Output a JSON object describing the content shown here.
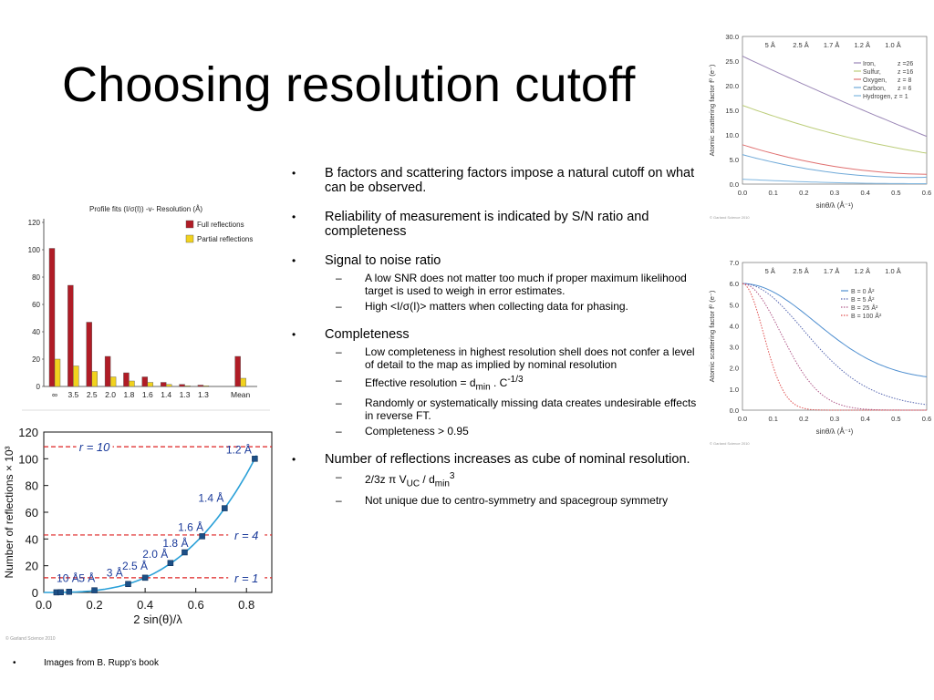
{
  "slide": {
    "title": "Choosing resolution cutoff",
    "footnote": "Images from B. Rupp’s book",
    "bullets": [
      {
        "text": "B factors and scattering factors impose a natural cutoff on what can be observed."
      },
      {
        "text": "Reliability of measurement is indicated by S/N ratio and completeness"
      },
      {
        "text": "Signal to noise ratio",
        "subs": [
          "A low SNR does not matter too much if proper maximum likelihood target is used to weigh in error estimates.",
          "High <I/σ(I)> matters when collecting data for phasing."
        ]
      },
      {
        "text": "Completeness",
        "subs": [
          "Low completeness in highest resolution shell does not confer a level of detail to the map as implied by nominal resolution",
          "Effective resolution = d",
          "Randomly or systematically missing data creates undesirable effects in reverse FT.",
          "Completeness > 0.95"
        ],
        "effective_min": "min",
        "effective_tail": " . C",
        "effective_exp": "-1/3"
      },
      {
        "text": "Number of reflections increases as cube of nominal resolution.",
        "subs": [
          "2/3z π V",
          "Not unique due to centro-symmetry and spacegroup symmetry"
        ],
        "formula_uc": "UC",
        "formula_mid": " / d",
        "formula_min": "min",
        "formula_exp": "3"
      }
    ]
  },
  "chart_data": [
    {
      "type": "bar",
      "title": "Profile fits (I/σ(I)) -v- Resolution (Å)",
      "categories": [
        "∞",
        "3.5",
        "2.5",
        "2.0",
        "1.8",
        "1.6",
        "1.4",
        "1.3",
        "1.3",
        "",
        "Mean"
      ],
      "series": [
        {
          "name": "Full reflections",
          "color": "#b01c26",
          "values": [
            101,
            74,
            47,
            22,
            10,
            7,
            3,
            1.5,
            1,
            null,
            22
          ]
        },
        {
          "name": "Partial reflections",
          "color": "#f1d21e",
          "values": [
            20,
            15,
            11,
            7,
            4,
            3,
            1.5,
            0.5,
            0.5,
            null,
            6
          ]
        }
      ],
      "y_ticks": [
        "0",
        "20",
        "40",
        "60",
        "80",
        "100",
        "120"
      ],
      "ylim": [
        0,
        120
      ]
    },
    {
      "type": "line",
      "xlabel": "2 sin(θ)/λ",
      "ylabel": "Number of reflections × 10³",
      "xlim": [
        0,
        0.9
      ],
      "ylim": [
        0,
        120
      ],
      "x_ticks": [
        "0.0",
        "0.2",
        "0.4",
        "0.6",
        "0.8"
      ],
      "y_ticks": [
        "0",
        "20",
        "40",
        "60",
        "80",
        "100",
        "120"
      ],
      "series": [
        {
          "x": [
            0.05,
            0.067,
            0.1,
            0.2,
            0.333,
            0.4,
            0.5,
            0.556,
            0.625,
            0.714,
            0.833
          ],
          "y": [
            0.06,
            0.15,
            0.5,
            1.6,
            6.3,
            11,
            22,
            30,
            42,
            63,
            100
          ]
        }
      ],
      "point_labels": [
        "10 Å",
        "5 Å",
        "3 Å",
        "2.5 Å",
        "2.0 Å",
        "1.8 Å",
        "1.6 Å",
        "1.4 Å",
        "1.2 Å"
      ],
      "reference_lines": [
        {
          "label": "r = 10",
          "y": 109
        },
        {
          "label": "r = 4",
          "y": 43
        },
        {
          "label": "r = 1",
          "y": 11
        }
      ],
      "credit": "© Garland Science 2010"
    },
    {
      "type": "line",
      "xlabel": "sinθ/λ (Å⁻¹)",
      "ylabel": "Atomic scattering factor f⁰ (e⁻)",
      "xlim": [
        0,
        0.6
      ],
      "ylim": [
        0,
        30
      ],
      "x_ticks": [
        "0.0",
        "0.1",
        "0.2",
        "0.3",
        "0.4",
        "0.5",
        "0.6"
      ],
      "y_ticks": [
        "0.0",
        "5.0",
        "10.0",
        "15.0",
        "20.0",
        "25.0",
        "30.0"
      ],
      "top_ticks": [
        "5 Å",
        "2.5 Å",
        "1.7 Å",
        "1.2 Å",
        "1.0 Å"
      ],
      "series": [
        {
          "name": "Iron,",
          "z": "z =26",
          "color": "#9a86b6",
          "values": [
            26,
            17.5,
            9.7
          ]
        },
        {
          "name": "Sulfur,",
          "z": "z =16",
          "color": "#bccd7a",
          "values": [
            16,
            10.2,
            6.3
          ]
        },
        {
          "name": "Oxygen,",
          "z": "z = 8",
          "color": "#e07070",
          "values": [
            8,
            3.6,
            2.0
          ]
        },
        {
          "name": "Carbon,",
          "z": "z = 6",
          "color": "#6fa9d8",
          "values": [
            6,
            2.3,
            1.4
          ]
        },
        {
          "name": "Hydrogen, z = 1",
          "z": "",
          "color": "#7fb6e0",
          "values": [
            1,
            0.3,
            0.1
          ]
        }
      ],
      "credit": "© Garland Science 2010"
    },
    {
      "type": "line",
      "xlabel": "sinθ/λ (Å⁻¹)",
      "ylabel": "Atomic scattering factor f⁰ (e⁻)",
      "xlim": [
        0,
        0.6
      ],
      "ylim": [
        0,
        7
      ],
      "x_ticks": [
        "0.0",
        "0.1",
        "0.2",
        "0.3",
        "0.4",
        "0.5",
        "0.6"
      ],
      "y_ticks": [
        "0.0",
        "1.0",
        "2.0",
        "3.0",
        "4.0",
        "5.0",
        "6.0",
        "7.0"
      ],
      "top_ticks": [
        "5 Å",
        "2.5 Å",
        "1.7 Å",
        "1.2 Å",
        "1.0 Å"
      ],
      "series": [
        {
          "name": "B =   0 Å²",
          "color": "#4f8fd0",
          "bfactor": 0
        },
        {
          "name": "B =   5 Å²",
          "color": "#5566b0",
          "bfactor": 5
        },
        {
          "name": "B =  25 Å²",
          "color": "#b05a8a",
          "bfactor": 25
        },
        {
          "name": "B = 100 Å²",
          "color": "#e05050",
          "bfactor": 100
        }
      ],
      "credit": "© Garland Science 2010"
    }
  ]
}
